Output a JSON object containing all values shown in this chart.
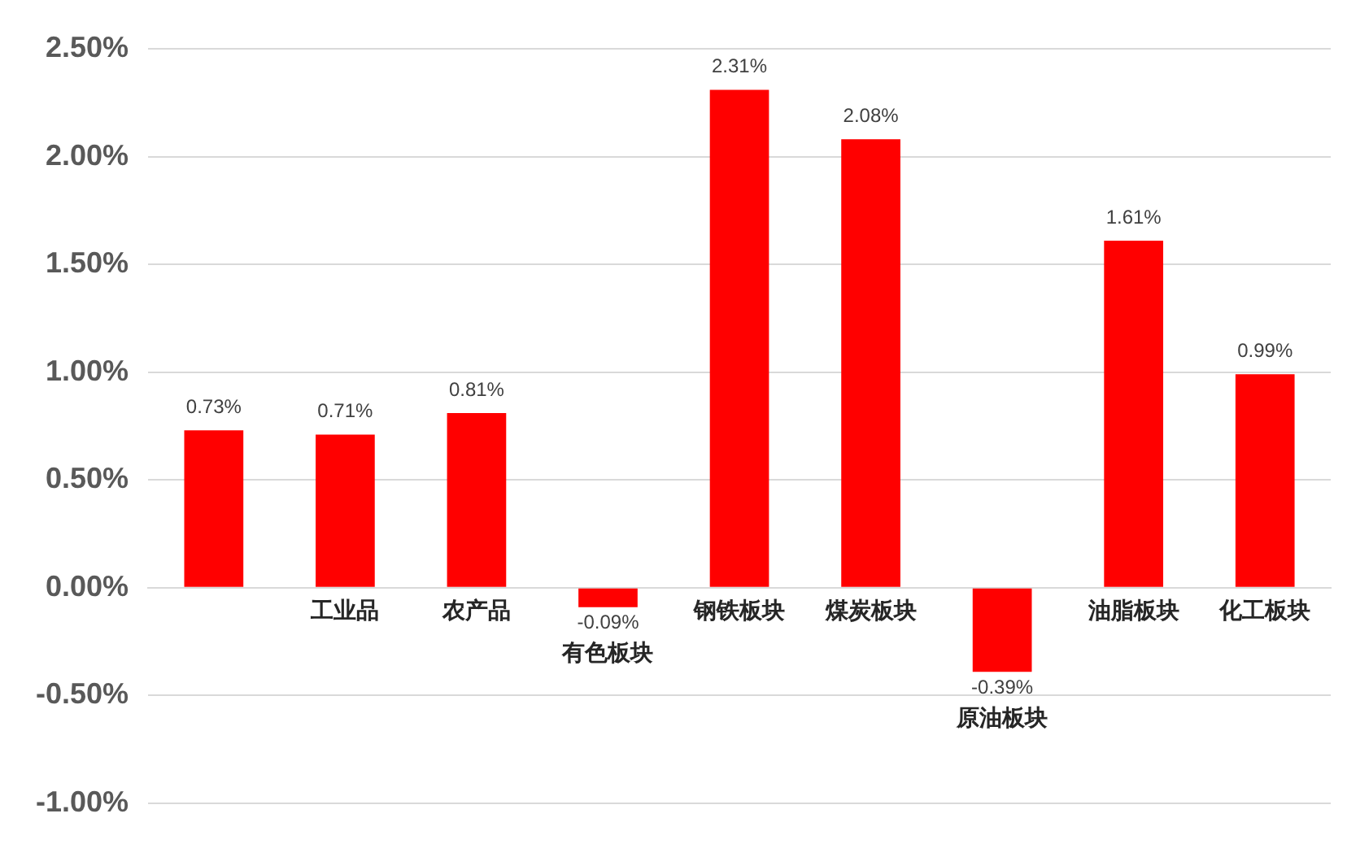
{
  "chart_data": {
    "type": "bar",
    "categories": [
      null,
      "工业品",
      "农产品",
      "有色板块",
      "钢铁板块",
      "煤炭板块",
      "原油板块",
      "油脂板块",
      "化工板块"
    ],
    "values": [
      0.73,
      0.71,
      0.81,
      -0.09,
      2.31,
      2.08,
      -0.39,
      1.61,
      0.99
    ],
    "value_labels": [
      "0.73%",
      "0.71%",
      "0.81%",
      "-0.09%",
      "2.31%",
      "2.08%",
      "-0.39%",
      "1.61%",
      "0.99%"
    ],
    "color": "#ff0000",
    "ylim": [
      -1.0,
      2.5
    ],
    "yticks": [
      {
        "value": -1.0,
        "label": "-1.00%"
      },
      {
        "value": -0.5,
        "label": "-0.50%"
      },
      {
        "value": 0,
        "label": "0.00%"
      },
      {
        "value": 0.5,
        "label": "0.50%"
      },
      {
        "value": 1.0,
        "label": "1.00%"
      },
      {
        "value": 1.5,
        "label": "1.50%"
      },
      {
        "value": 2.0,
        "label": "2.00%"
      },
      {
        "value": 2.5,
        "label": "2.50%"
      }
    ],
    "grid": "y",
    "legend": false
  }
}
